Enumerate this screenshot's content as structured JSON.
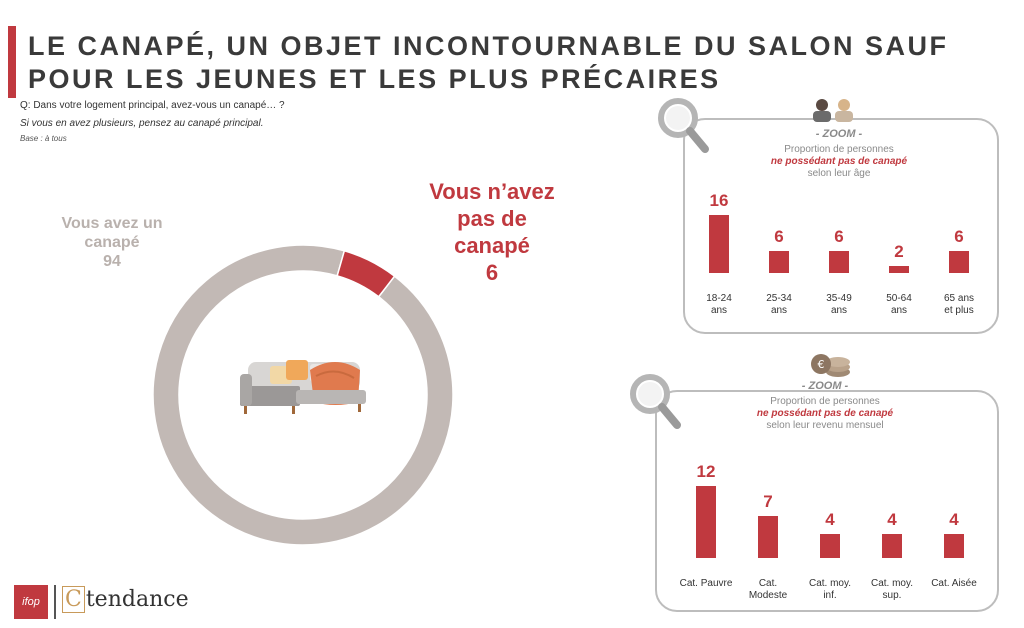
{
  "header": {
    "title": "LE CANAPÉ, UN OBJET INCONTOURNABLE DU SALON SAUF POUR LES JEUNES ET LES PLUS PRÉCAIRES",
    "question_start": "Q: Dans votre logement principal, avez-",
    "question_end": "vous un canapé… ?",
    "subquestion": "Si vous en avez plusieurs, pensez au canapé principal.",
    "base": "Base : à tous"
  },
  "colors": {
    "accent": "#c0393f",
    "donut_main": "#c2b9b5",
    "box_border": "#bdbdbd"
  },
  "chart_data": [
    {
      "type": "pie",
      "variant": "donut",
      "slices": [
        {
          "label": "Vous avez un canapé",
          "value": 94,
          "color": "#c2b9b5"
        },
        {
          "label": "Vous n’avez pas de canapé",
          "value": 6,
          "color": "#c0393f"
        }
      ],
      "labels": {
        "have_line1": "Vous avez un",
        "have_line2": "canapé",
        "have_value": "94",
        "nothave_line1": "Vous n’avez",
        "nothave_line2": "pas de",
        "nothave_line3": "canapé",
        "nothave_value": "6"
      }
    },
    {
      "type": "bar",
      "zoom_title": "- ZOOM -",
      "subtitle_line1": "Proportion de personnes",
      "subtitle_highlight": "ne possédant pas de canapé",
      "subtitle_line3": "selon leur âge",
      "categories": [
        [
          "18-24",
          "ans"
        ],
        [
          "25-34",
          "ans"
        ],
        [
          "35-49",
          "ans"
        ],
        [
          "50-64",
          "ans"
        ],
        [
          "65 ans",
          "et plus"
        ]
      ],
      "values": [
        16,
        6,
        6,
        2,
        6
      ],
      "value_labels": [
        "16",
        "6",
        "6",
        "2",
        "6"
      ],
      "ylim": [
        0,
        16
      ]
    },
    {
      "type": "bar",
      "zoom_title": "- ZOOM -",
      "subtitle_line1": "Proportion de personnes",
      "subtitle_highlight": "ne possédant pas de canapé",
      "subtitle_line3": "selon leur revenu mensuel",
      "categories": [
        [
          "Cat. Pauvre"
        ],
        [
          "Cat.",
          "Modeste"
        ],
        [
          "Cat. moy.",
          "inf."
        ],
        [
          "Cat. moy.",
          "sup."
        ],
        [
          "Cat. Aisée"
        ]
      ],
      "values": [
        12,
        7,
        4,
        4,
        4
      ],
      "value_labels": [
        "12",
        "7",
        "4",
        "4",
        "4"
      ],
      "ylim": [
        0,
        12
      ]
    }
  ],
  "logos": {
    "ifop": "ifop",
    "ct_letter": "C",
    "ct_rest": "tendance"
  },
  "icons": [
    "magnifier-icon",
    "people-icon",
    "coins-icon",
    "sofa-icon"
  ]
}
